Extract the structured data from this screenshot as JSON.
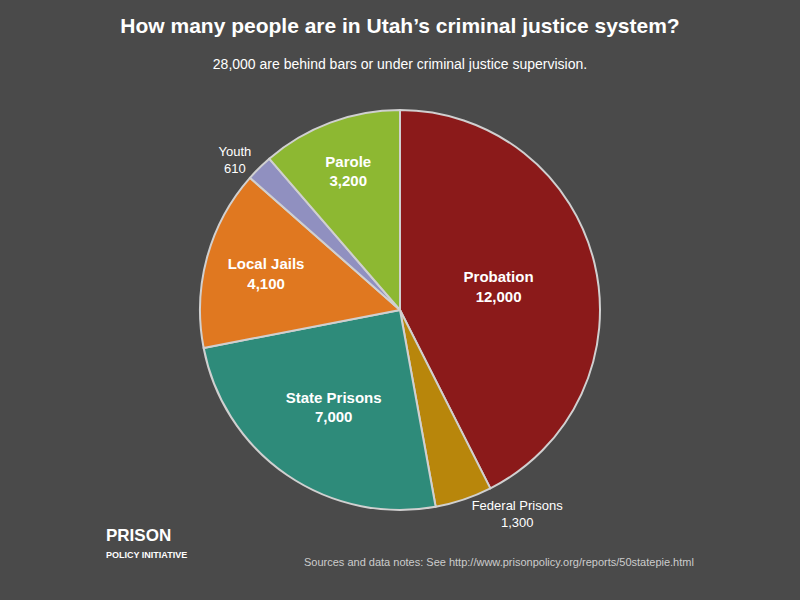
{
  "chart_data": {
    "type": "pie",
    "title": "How many people are in Utah’s criminal justice system?",
    "subtitle": "28,000 are behind bars or under criminal justice supervision.",
    "categories": [
      "Probation",
      "Federal Prisons",
      "State Prisons",
      "Local Jails",
      "Youth",
      "Parole"
    ],
    "values": [
      12000,
      1300,
      7000,
      4100,
      610,
      3200
    ],
    "value_labels": [
      "12,000",
      "1,300",
      "7,000",
      "4,100",
      "610",
      "3,200"
    ],
    "data_labels": true,
    "colors": [
      "#8b1a1a",
      "#b8860b",
      "#2e8b7a",
      "#e07820",
      "#9090c0",
      "#8db832"
    ],
    "annotations": [
      "PRISON",
      "POLICY INITIATIVE",
      "Sources and data notes: See http://www.prisonpolicy.org/reports/50statepie.html"
    ]
  }
}
